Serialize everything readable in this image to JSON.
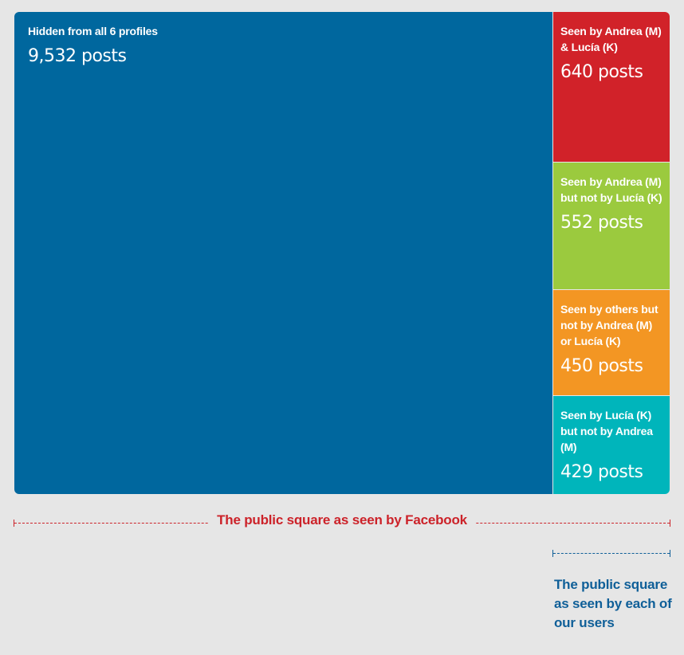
{
  "chart_data": {
    "type": "treemap",
    "unit": "posts",
    "cells": [
      {
        "label": "Hidden from all 6 profiles",
        "value": 9532,
        "value_text": "9,532 posts",
        "color": "#00679e"
      },
      {
        "label": "Seen by Andrea (M) & Lucía (K)",
        "value": 640,
        "value_text": "640 posts",
        "color": "#d12229"
      },
      {
        "label": "Seen by Andrea (M) but not by Lucía (K)",
        "value": 552,
        "value_text": "552 posts",
        "color": "#9bca3e"
      },
      {
        "label": "Seen by others but not by Andrea (M) or Lucía (K)",
        "value": 450,
        "value_text": "450 posts",
        "color": "#f39623"
      },
      {
        "label": "Seen by Lucía (K) but not by Andrea (M)",
        "value": 429,
        "value_text": "429 posts",
        "color": "#00b5bb"
      }
    ]
  },
  "annotations": {
    "facebook_caption": "The public square as seen by Facebook",
    "users_caption": "The public square as seen by each of our users"
  },
  "colors": {
    "background": "#e6e6e6",
    "facebook_caption": "#cc2229",
    "users_caption": "#0f5f98"
  }
}
